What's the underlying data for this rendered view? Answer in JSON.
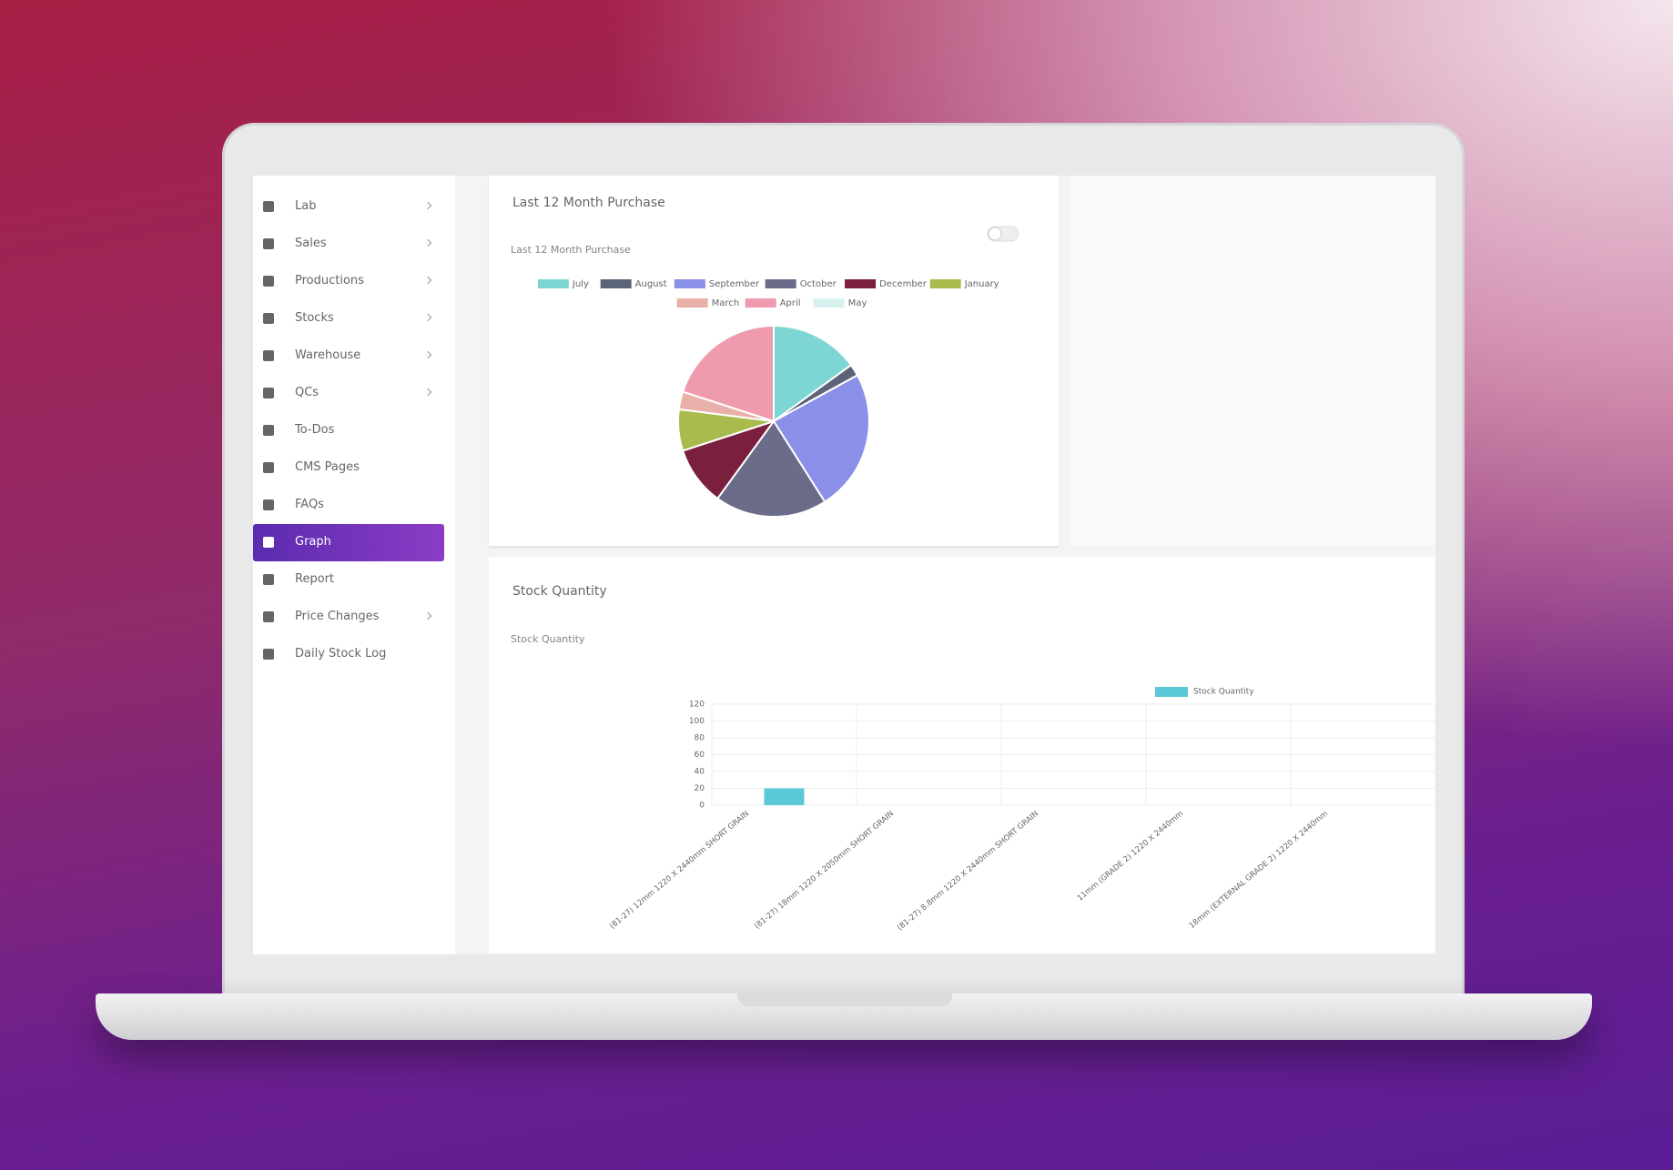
{
  "sidebar": {
    "items": [
      {
        "label": "Lab",
        "submenu": true
      },
      {
        "label": "Sales",
        "submenu": true
      },
      {
        "label": "Productions",
        "submenu": true
      },
      {
        "label": "Stocks",
        "submenu": true
      },
      {
        "label": "Warehouse",
        "submenu": true
      },
      {
        "label": "QCs",
        "submenu": true
      },
      {
        "label": "To-Dos",
        "submenu": false
      },
      {
        "label": "CMS Pages",
        "submenu": false
      },
      {
        "label": "FAQs",
        "submenu": false
      },
      {
        "label": "Graph",
        "submenu": false,
        "active": true
      },
      {
        "label": "Report",
        "submenu": false
      },
      {
        "label": "Price Changes",
        "submenu": true
      },
      {
        "label": "Daily Stock Log",
        "submenu": false
      }
    ]
  },
  "chart_data": [
    {
      "type": "pie",
      "title": "Last 12 Month Purchase",
      "subtitle": "Last 12 Month Purchase",
      "categories": [
        "July",
        "August",
        "September",
        "October",
        "December",
        "January",
        "March",
        "April",
        "May"
      ],
      "values": [
        15,
        2,
        24,
        19,
        10,
        7,
        3,
        20,
        0
      ],
      "colors": [
        "#7dd6d3",
        "#5c6478",
        "#8a8fe8",
        "#6b6b8a",
        "#7a1f3d",
        "#a8bb4c",
        "#e8b0a8",
        "#ef9aae",
        "#d8f1ef"
      ],
      "legend": "top"
    },
    {
      "type": "bar",
      "title": "Stock Quantity",
      "subtitle": "Stock Quantity",
      "categories": [
        "(81-27) 12mm 1220 X 2440mm SHORT GRAIN",
        "(81-27) 18mm 1220 X 2050mm SHORT GRAIN",
        "(81-27) 8.8mm 1220 X 2440mm SHORT GRAIN",
        "11mm (GRADE 2) 1220 X 2440mm",
        "18mm (EXTERNAL GRADE 2) 1220 X 2440mm"
      ],
      "series": [
        {
          "name": "Stock Quantity",
          "color": "#5bc8d8",
          "values": [
            20,
            0,
            0,
            0,
            0
          ]
        }
      ],
      "ylim": [
        0,
        120
      ],
      "yticks": [
        0,
        20,
        40,
        60,
        80,
        100,
        120
      ],
      "grid": true,
      "legend": "top-right"
    }
  ]
}
